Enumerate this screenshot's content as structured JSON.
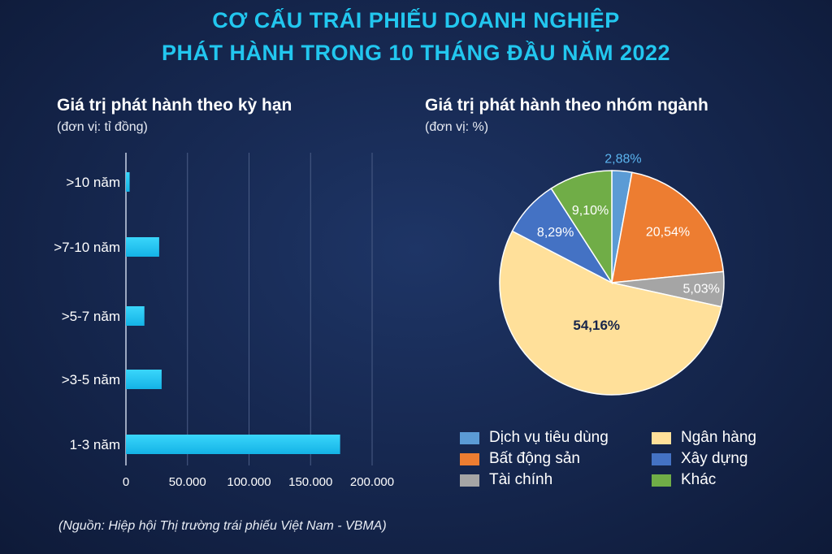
{
  "title_line1": "CƠ CẤU TRÁI PHIẾU DOANH NGHIỆP",
  "title_line2": "PHÁT HÀNH TRONG 10 THÁNG ĐẦU NĂM 2022",
  "source": "(Nguồn: Hiệp hội Thị trường trái phiếu Việt Nam - VBMA)",
  "colors": {
    "title": "#22c7ef",
    "bar": "#1ec3f0"
  },
  "chart_data": [
    {
      "type": "bar",
      "orientation": "horizontal",
      "title": "Giá trị phát hành theo kỳ hạn",
      "unit": "(đơn vị: tỉ đồng)",
      "categories": [
        ">10 năm",
        ">7-10 năm",
        ">5-7 năm",
        ">3-5 năm",
        "1-3 năm"
      ],
      "values": [
        3000,
        27000,
        15000,
        29000,
        174000
      ],
      "xlim": [
        0,
        200000
      ],
      "xticks": [
        0,
        50000,
        100000,
        150000,
        200000
      ],
      "xtick_labels": [
        "0",
        "50.000",
        "100.000",
        "150.000",
        "200.000"
      ],
      "grid": true
    },
    {
      "type": "pie",
      "title": "Giá trị phát hành theo nhóm ngành",
      "unit": "(đơn vị: %)",
      "slices": [
        {
          "name": "Dịch vụ tiêu dùng",
          "value": 2.88,
          "label": "2,88%",
          "color": "#5b9bd5"
        },
        {
          "name": "Bất động sản",
          "value": 20.54,
          "label": "20,54%",
          "color": "#ed7d31"
        },
        {
          "name": "Tài chính",
          "value": 5.03,
          "label": "5,03%",
          "color": "#a5a5a5"
        },
        {
          "name": "Ngân hàng",
          "value": 54.16,
          "label": "54,16%",
          "color": "#ffe09a"
        },
        {
          "name": "Xây dựng",
          "value": 8.29,
          "label": "8,29%",
          "color": "#4472c4"
        },
        {
          "name": "Khác",
          "value": 9.1,
          "label": "9,10%",
          "color": "#70ad47"
        }
      ],
      "legend": [
        "Dịch vụ tiêu dùng",
        "Ngân hàng",
        "Bất động sản",
        "Xây dựng",
        "Tài chính",
        "Khác"
      ],
      "legend_position": "bottom"
    }
  ]
}
